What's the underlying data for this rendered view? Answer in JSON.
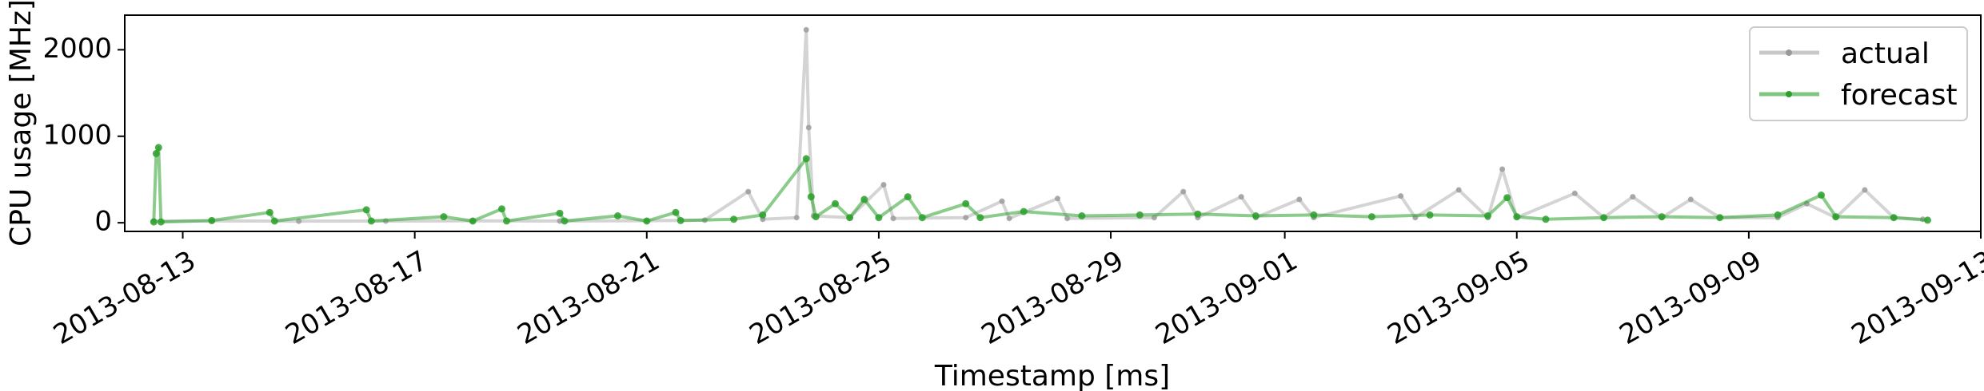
{
  "chart_data": {
    "type": "line",
    "title": "",
    "xlabel": "Timestamp [ms]",
    "ylabel": "CPU usage [MHz]",
    "x_type": "date",
    "xlim": [
      "2013-08-12T00:00",
      "2013-09-13T00:00"
    ],
    "ylim": [
      -100,
      2400
    ],
    "xticks": [
      "2013-08-13",
      "2013-08-17",
      "2013-08-21",
      "2013-08-25",
      "2013-08-29",
      "2013-09-01",
      "2013-09-05",
      "2013-09-09",
      "2013-09-13"
    ],
    "yticks": [
      0,
      1000,
      2000
    ],
    "grid": false,
    "legend": {
      "placement": "top-right",
      "entries": [
        "actual",
        "forecast"
      ]
    },
    "series": [
      {
        "name": "actual",
        "color": "#b0b0b0",
        "style": "line-with-dots",
        "points": [
          [
            "2013-08-12T12:00",
            20
          ],
          [
            "2013-08-13T12:00",
            22
          ],
          [
            "2013-08-15T00:00",
            18
          ],
          [
            "2013-08-16T12:00",
            20
          ],
          [
            "2013-08-18T00:00",
            22
          ],
          [
            "2013-08-19T12:00",
            20
          ],
          [
            "2013-08-21T00:00",
            24
          ],
          [
            "2013-08-22T00:00",
            30
          ],
          [
            "2013-08-22T18:00",
            360
          ],
          [
            "2013-08-23T00:00",
            40
          ],
          [
            "2013-08-23T14:00",
            60
          ],
          [
            "2013-08-23T18:00",
            2230
          ],
          [
            "2013-08-23T19:00",
            1100
          ],
          [
            "2013-08-23T21:00",
            80
          ],
          [
            "2013-08-24T12:00",
            60
          ],
          [
            "2013-08-25T02:00",
            440
          ],
          [
            "2013-08-25T06:00",
            50
          ],
          [
            "2013-08-26T12:00",
            60
          ],
          [
            "2013-08-27T03:00",
            250
          ],
          [
            "2013-08-27T06:00",
            50
          ],
          [
            "2013-08-28T02:00",
            280
          ],
          [
            "2013-08-28T06:00",
            50
          ],
          [
            "2013-08-29T18:00",
            60
          ],
          [
            "2013-08-30T06:00",
            360
          ],
          [
            "2013-08-30T12:00",
            60
          ],
          [
            "2013-08-31T06:00",
            300
          ],
          [
            "2013-08-31T12:00",
            60
          ],
          [
            "2013-09-01T06:00",
            270
          ],
          [
            "2013-09-01T12:00",
            60
          ],
          [
            "2013-09-03T00:00",
            310
          ],
          [
            "2013-09-03T06:00",
            60
          ],
          [
            "2013-09-04T00:00",
            380
          ],
          [
            "2013-09-04T12:00",
            60
          ],
          [
            "2013-09-04T18:00",
            620
          ],
          [
            "2013-09-05T00:00",
            60
          ],
          [
            "2013-09-06T00:00",
            340
          ],
          [
            "2013-09-06T12:00",
            60
          ],
          [
            "2013-09-07T00:00",
            300
          ],
          [
            "2013-09-07T12:00",
            60
          ],
          [
            "2013-09-08T00:00",
            270
          ],
          [
            "2013-09-08T12:00",
            60
          ],
          [
            "2013-09-09T12:00",
            60
          ],
          [
            "2013-09-10T00:00",
            220
          ],
          [
            "2013-09-10T12:00",
            60
          ],
          [
            "2013-09-11T00:00",
            380
          ],
          [
            "2013-09-11T12:00",
            60
          ],
          [
            "2013-09-12T00:00",
            40
          ]
        ]
      },
      {
        "name": "forecast",
        "color": "#2ca02c",
        "style": "line-with-dots",
        "points": [
          [
            "2013-08-12T12:00",
            10
          ],
          [
            "2013-08-12T13:00",
            800
          ],
          [
            "2013-08-12T14:00",
            870
          ],
          [
            "2013-08-12T15:00",
            10
          ],
          [
            "2013-08-13T12:00",
            25
          ],
          [
            "2013-08-14T12:00",
            120
          ],
          [
            "2013-08-14T14:00",
            20
          ],
          [
            "2013-08-16T04:00",
            150
          ],
          [
            "2013-08-16T06:00",
            20
          ],
          [
            "2013-08-17T12:00",
            70
          ],
          [
            "2013-08-18T00:00",
            20
          ],
          [
            "2013-08-18T12:00",
            160
          ],
          [
            "2013-08-18T14:00",
            20
          ],
          [
            "2013-08-19T12:00",
            110
          ],
          [
            "2013-08-19T14:00",
            20
          ],
          [
            "2013-08-20T12:00",
            80
          ],
          [
            "2013-08-21T00:00",
            20
          ],
          [
            "2013-08-21T12:00",
            120
          ],
          [
            "2013-08-21T14:00",
            25
          ],
          [
            "2013-08-22T12:00",
            40
          ],
          [
            "2013-08-23T00:00",
            90
          ],
          [
            "2013-08-23T18:00",
            740
          ],
          [
            "2013-08-23T20:00",
            300
          ],
          [
            "2013-08-23T22:00",
            70
          ],
          [
            "2013-08-24T06:00",
            220
          ],
          [
            "2013-08-24T12:00",
            60
          ],
          [
            "2013-08-24T18:00",
            270
          ],
          [
            "2013-08-25T00:00",
            60
          ],
          [
            "2013-08-25T12:00",
            300
          ],
          [
            "2013-08-25T18:00",
            60
          ],
          [
            "2013-08-26T12:00",
            220
          ],
          [
            "2013-08-26T18:00",
            60
          ],
          [
            "2013-08-27T12:00",
            130
          ],
          [
            "2013-08-28T12:00",
            80
          ],
          [
            "2013-08-29T12:00",
            90
          ],
          [
            "2013-08-30T12:00",
            100
          ],
          [
            "2013-08-31T12:00",
            80
          ],
          [
            "2013-09-01T12:00",
            90
          ],
          [
            "2013-09-02T12:00",
            70
          ],
          [
            "2013-09-03T12:00",
            90
          ],
          [
            "2013-09-04T12:00",
            80
          ],
          [
            "2013-09-04T20:00",
            290
          ],
          [
            "2013-09-05T00:00",
            70
          ],
          [
            "2013-09-05T12:00",
            40
          ],
          [
            "2013-09-06T12:00",
            60
          ],
          [
            "2013-09-07T12:00",
            70
          ],
          [
            "2013-09-08T12:00",
            60
          ],
          [
            "2013-09-09T12:00",
            90
          ],
          [
            "2013-09-10T06:00",
            320
          ],
          [
            "2013-09-10T12:00",
            70
          ],
          [
            "2013-09-11T12:00",
            60
          ],
          [
            "2013-09-12T02:00",
            30
          ]
        ]
      }
    ]
  }
}
